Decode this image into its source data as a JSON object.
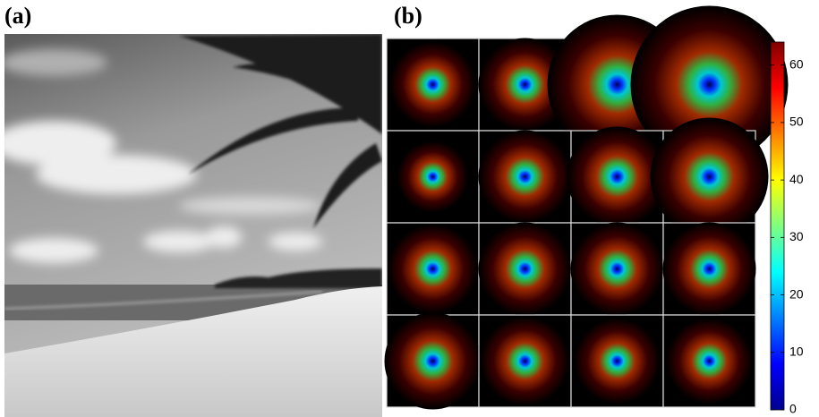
{
  "panels": {
    "a": {
      "label": "(a)"
    },
    "b": {
      "label": "(b)"
    }
  },
  "chart_data": {
    "type": "colorbar",
    "lim": [
      0,
      64
    ],
    "ticks": [
      0,
      10,
      20,
      30,
      40,
      50,
      60
    ]
  }
}
